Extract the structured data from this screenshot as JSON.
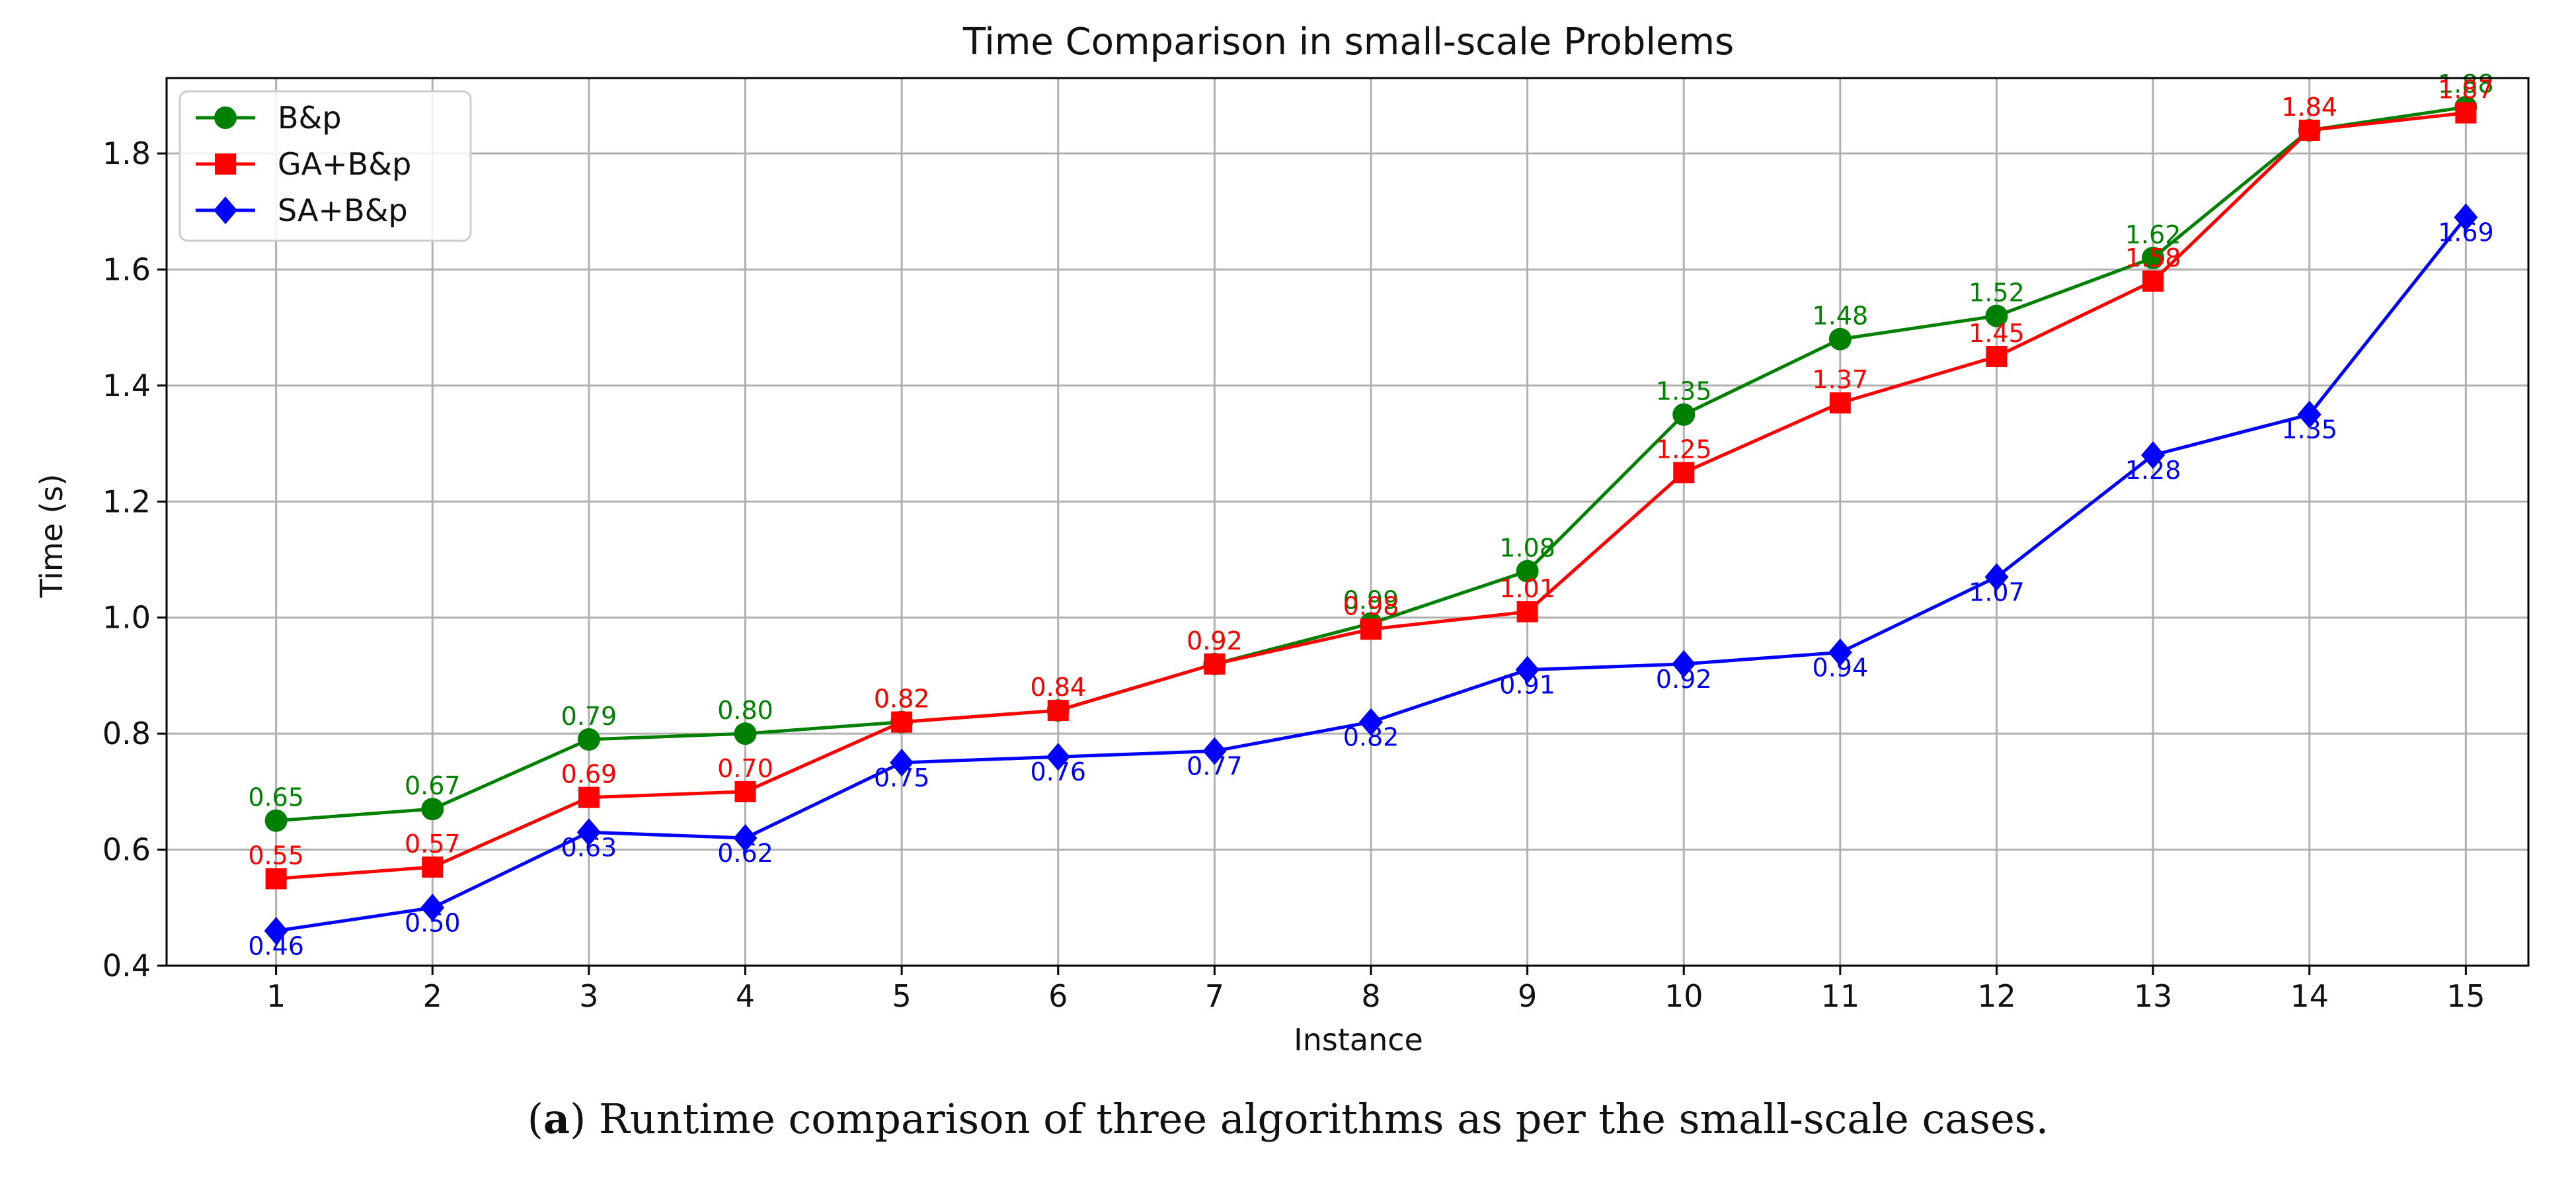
{
  "chart_data": {
    "type": "line",
    "title": "Time Comparison in small-scale Problems",
    "xlabel": "Instance",
    "ylabel": "Time (s)",
    "x": [
      1,
      2,
      3,
      4,
      5,
      6,
      7,
      8,
      9,
      10,
      11,
      12,
      13,
      14,
      15
    ],
    "x_tick_labels": [
      "1",
      "2",
      "3",
      "4",
      "5",
      "6",
      "7",
      "8",
      "9",
      "10",
      "11",
      "12",
      "13",
      "14",
      "15"
    ],
    "y_tick_labels": [
      "0.4",
      "0.6",
      "0.8",
      "1.0",
      "1.2",
      "1.4",
      "1.6",
      "1.8"
    ],
    "xlim": [
      0.3,
      15.4
    ],
    "ylim": [
      0.4,
      1.93
    ],
    "grid": true,
    "legend_position": "top-left",
    "series": [
      {
        "name": "B&p",
        "color": "#008000",
        "marker": "circle",
        "values": [
          0.65,
          0.67,
          0.79,
          0.8,
          0.82,
          0.84,
          0.92,
          0.99,
          1.08,
          1.35,
          1.48,
          1.52,
          1.62,
          1.84,
          1.88
        ],
        "labels": [
          "0.65",
          "0.67",
          "0.79",
          "0.80",
          "0.82",
          "0.84",
          "0.92",
          "0.99",
          "1.08",
          "1.35",
          "1.48",
          "1.52",
          "1.62",
          "1.84",
          "1.88"
        ]
      },
      {
        "name": "GA+B&p",
        "color": "#ff0000",
        "marker": "square",
        "values": [
          0.55,
          0.57,
          0.69,
          0.7,
          0.82,
          0.84,
          0.92,
          0.98,
          1.01,
          1.25,
          1.37,
          1.45,
          1.58,
          1.84,
          1.87
        ],
        "labels": [
          "0.55",
          "0.57",
          "0.69",
          "0.70",
          "0.82",
          "0.84",
          "0.92",
          "0.98",
          "1.01",
          "1.25",
          "1.37",
          "1.45",
          "1.58",
          "1.84",
          "1.87"
        ]
      },
      {
        "name": "SA+B&p",
        "color": "#0000ff",
        "marker": "diamond",
        "values": [
          0.46,
          0.5,
          0.63,
          0.62,
          0.75,
          0.76,
          0.77,
          0.82,
          0.91,
          0.92,
          0.94,
          1.07,
          1.28,
          1.35,
          1.69
        ],
        "labels": [
          "0.46",
          "0.50",
          "0.63",
          "0.62",
          "0.75",
          "0.76",
          "0.77",
          "0.82",
          "0.91",
          "0.92",
          "0.94",
          "1.07",
          "1.28",
          "1.35",
          "1.69"
        ]
      }
    ]
  },
  "caption": {
    "label": "a",
    "text": " Runtime comparison of three algorithms as per the small-scale cases."
  }
}
